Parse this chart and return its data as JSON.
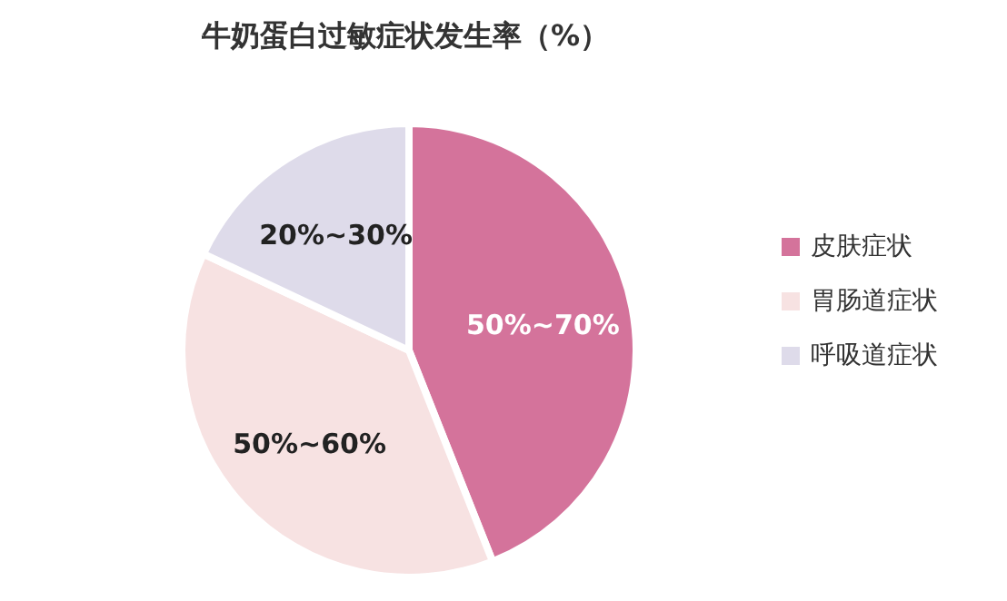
{
  "chart_data": {
    "type": "pie",
    "title": "牛奶蛋白过敏症状发生率（%）",
    "categories": [
      "皮肤症状",
      "胃肠道症状",
      "呼吸道症状"
    ],
    "values": [
      44,
      38,
      18
    ],
    "colors": [
      "#d4739b",
      "#f7e2e2",
      "#dedbea"
    ],
    "annotations": [
      {
        "text": "50%~70%",
        "x": "皮肤症状"
      },
      {
        "text": "50%~60%",
        "x": "胃肠道症状"
      },
      {
        "text": "20%~30%",
        "x": "呼吸道症状"
      }
    ],
    "legend": "right"
  }
}
